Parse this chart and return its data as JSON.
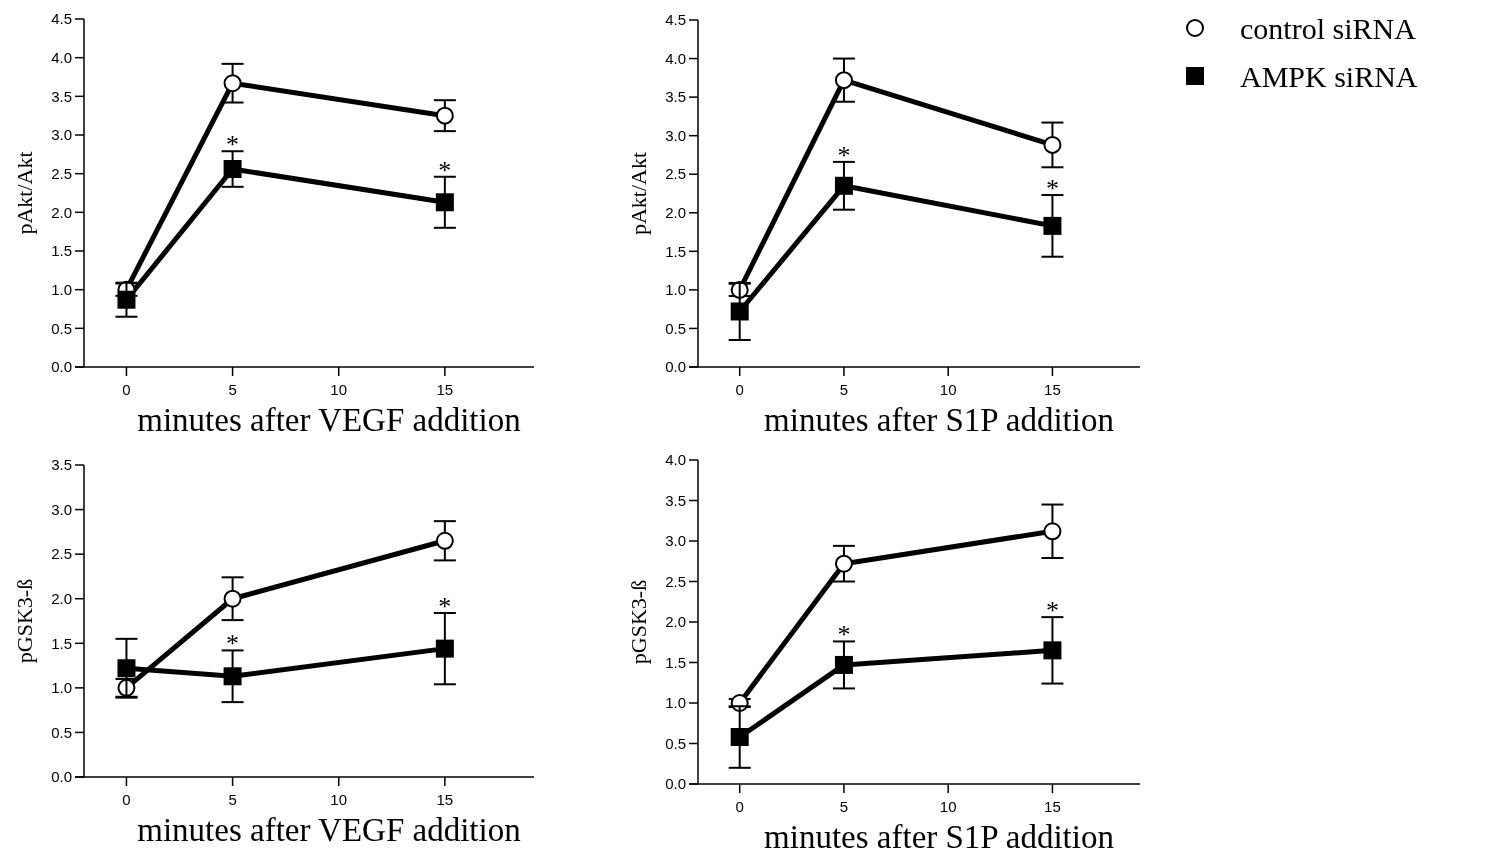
{
  "chart_data": [
    {
      "type": "line",
      "xlabel": "minutes after VEGF addition",
      "ylabel": "pAkt/Akt",
      "x": [
        0,
        5,
        15
      ],
      "xlim": [
        -2,
        19.2
      ],
      "xticks": [
        0,
        5,
        10,
        15
      ],
      "ylim": [
        0,
        4.5
      ],
      "yticks": [
        {
          "value": 0,
          "label": "0.0"
        },
        0.5,
        {
          "value": 1,
          "label": "1.0"
        },
        1.5,
        {
          "value": 2,
          "label": "2.0"
        },
        2.5,
        {
          "value": 3,
          "label": "3.0"
        },
        3.5,
        {
          "value": 4,
          "label": "4.0"
        },
        4.5
      ],
      "grid": false,
      "legend": "right",
      "line_style": "solid",
      "series": [
        {
          "name": "control siRNA",
          "color": "#000000",
          "marker": "circle",
          "values": [
            1.0,
            3.67,
            3.25
          ],
          "errors": [
            0.08,
            0.25,
            0.2
          ]
        },
        {
          "name": "AMPK siRNA",
          "color": "#000000",
          "marker": "square",
          "values": [
            0.87,
            2.56,
            2.13
          ],
          "errors": [
            0.22,
            0.23,
            0.33
          ]
        }
      ],
      "annotations": [
        "*",
        "*"
      ]
    },
    {
      "type": "line",
      "xlabel": "minutes after S1P addition",
      "ylabel": "pAkt/Akt",
      "x": [
        0,
        5,
        15
      ],
      "xlim": [
        -2,
        19.2
      ],
      "xticks": [
        0,
        5,
        10,
        15
      ],
      "ylim": [
        0,
        4.5
      ],
      "yticks": [
        {
          "value": 0,
          "label": "0.0"
        },
        0.5,
        {
          "value": 1,
          "label": "1.0"
        },
        1.5,
        {
          "value": 2,
          "label": "2.0"
        },
        2.5,
        {
          "value": 3,
          "label": "3.0"
        },
        3.5,
        {
          "value": 4,
          "label": "4.0"
        },
        4.5
      ],
      "grid": false,
      "line_style": "solid",
      "series": [
        {
          "color": "#000000",
          "marker": "circle",
          "values": [
            1.0,
            3.72,
            2.88
          ],
          "errors": [
            0.08,
            0.28,
            0.29
          ]
        },
        {
          "color": "#000000",
          "marker": "square",
          "values": [
            0.72,
            2.35,
            1.83
          ],
          "errors": [
            0.37,
            0.31,
            0.4
          ]
        }
      ],
      "annotations": [
        "*",
        "*"
      ]
    },
    {
      "type": "line",
      "xlabel": "minutes after VEGF addition",
      "ylabel": "pGSK3-ß",
      "x": [
        0,
        5,
        15
      ],
      "xlim": [
        -2,
        19.2
      ],
      "xticks": [
        0,
        5,
        10,
        15
      ],
      "ylim": [
        0,
        3.5
      ],
      "yticks": [
        {
          "value": 0,
          "label": "0.0"
        },
        0.5,
        {
          "value": 1,
          "label": "1.0"
        },
        1.5,
        {
          "value": 2,
          "label": "2.0"
        },
        2.5,
        {
          "value": 3,
          "label": "3.0"
        },
        3.5
      ],
      "grid": false,
      "line_style": "solid",
      "series": [
        {
          "color": "#000000",
          "marker": "circle",
          "values": [
            1.0,
            2.0,
            2.65
          ],
          "errors": [
            0.1,
            0.24,
            0.22
          ]
        },
        {
          "color": "#000000",
          "marker": "square",
          "values": [
            1.22,
            1.13,
            1.44
          ],
          "errors": [
            0.33,
            0.29,
            0.4
          ]
        }
      ],
      "annotations": [
        "*",
        "*"
      ]
    },
    {
      "type": "line",
      "xlabel": "minutes after S1P addition",
      "ylabel": "pGSK3-ß",
      "x": [
        0,
        5,
        15
      ],
      "xlim": [
        -2,
        19.2
      ],
      "xticks": [
        0,
        5,
        10,
        15
      ],
      "ylim": [
        0,
        4
      ],
      "yticks": [
        {
          "value": 0,
          "label": "0.0"
        },
        0.5,
        {
          "value": 1,
          "label": "1.0"
        },
        1.5,
        {
          "value": 2,
          "label": "2.0"
        },
        2.5,
        {
          "value": 3,
          "label": "3.0"
        },
        3.5,
        {
          "value": 4,
          "label": "4.0"
        }
      ],
      "grid": false,
      "line_style": "solid",
      "series": [
        {
          "color": "#000000",
          "marker": "circle",
          "values": [
            1.0,
            2.72,
            3.12
          ],
          "errors": [
            0.05,
            0.22,
            0.33
          ]
        },
        {
          "color": "#000000",
          "marker": "square",
          "values": [
            0.58,
            1.47,
            1.65
          ],
          "errors": [
            0.38,
            0.29,
            0.41
          ]
        }
      ],
      "annotations": [
        "*",
        "*"
      ]
    }
  ]
}
